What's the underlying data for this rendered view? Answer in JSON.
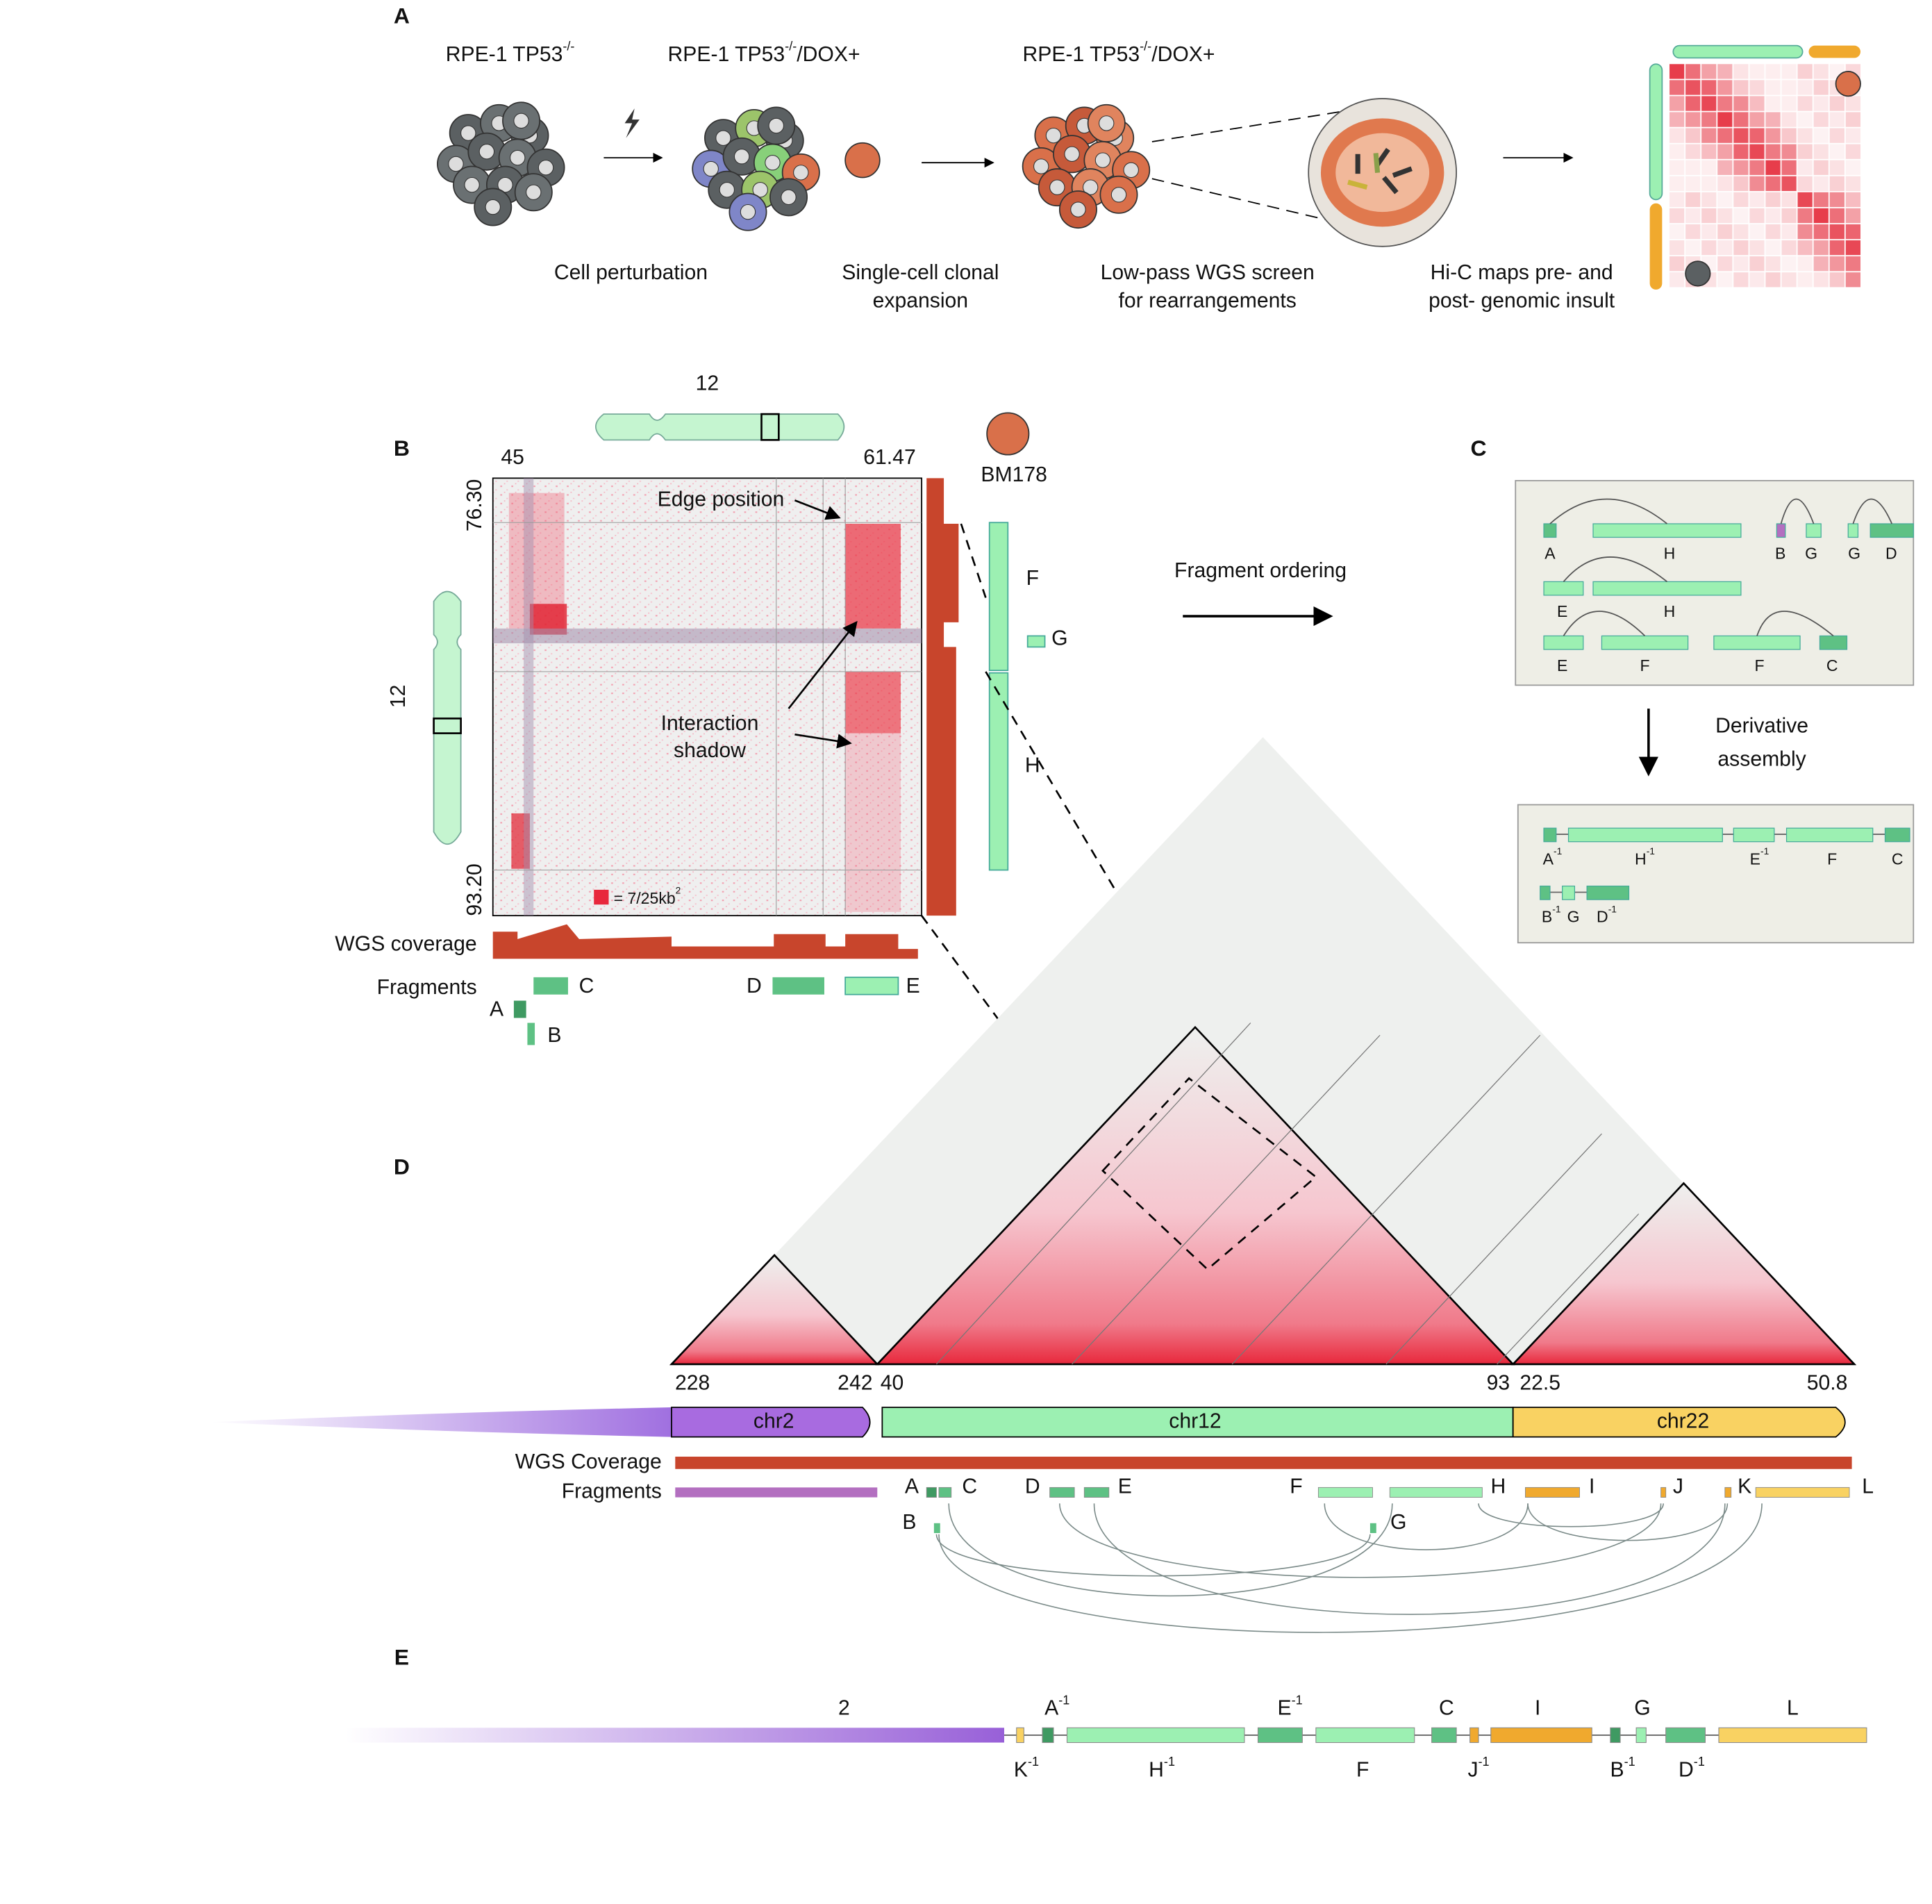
{
  "panel_a": {
    "label": "A",
    "lines": [
      {
        "text": "RPE-1 TP53",
        "sup": "-/-"
      },
      {
        "text": "RPE-1 TP53",
        "sup": "-/-",
        "suffix": "/DOX+"
      },
      {
        "text": "RPE-1 TP53",
        "sup": "-/-",
        "suffix": "/DOX+"
      }
    ],
    "steps": [
      [
        "Cell perturbation"
      ],
      [
        "Single-cell clonal",
        "expansion"
      ],
      [
        "Low-pass WGS screen",
        "for rearrangements"
      ],
      [
        "Hi-C maps pre- and",
        "post- genomic insult"
      ]
    ]
  },
  "panel_b": {
    "label": "B",
    "chromosome": "12",
    "ticks_x": [
      "45",
      "61.47"
    ],
    "ticks_y": [
      "76.30",
      "93.20"
    ],
    "sample": "BM178",
    "edge_label": "Edge position",
    "shadow_label": [
      "Interaction",
      "shadow"
    ],
    "scale": {
      "text": "= 7/25kb",
      "sup": "2"
    },
    "coverage_label": "WGS coverage",
    "fragments_label": "Fragments",
    "fragments": [
      "A",
      "B",
      "C",
      "D",
      "E"
    ],
    "right_fragments": [
      "F",
      "G",
      "H"
    ]
  },
  "panel_c": {
    "label": "C",
    "arrow_label": "Fragment ordering",
    "pairs": [
      [
        "A",
        "H"
      ],
      [
        "B",
        "G"
      ],
      [
        "G",
        "D"
      ],
      [
        "E",
        "H"
      ],
      [
        "E",
        "F"
      ],
      [
        "F",
        "C"
      ]
    ],
    "assembly_label": [
      "Derivative",
      "assembly"
    ],
    "derivatives": [
      [
        {
          "text": "A",
          "sup": "-1"
        },
        {
          "text": "H",
          "sup": "-1"
        },
        {
          "text": "E",
          "sup": "-1"
        },
        {
          "text": "F"
        },
        {
          "text": "C"
        }
      ],
      [
        {
          "text": "B",
          "sup": "-1"
        },
        {
          "text": "G"
        },
        {
          "text": "D",
          "sup": "-1"
        }
      ]
    ]
  },
  "panel_d": {
    "label": "D",
    "ticks": [
      "228",
      "242",
      "40",
      "93",
      "22.5",
      "50.8"
    ],
    "chromosomes": [
      "chr2",
      "chr12",
      "chr22"
    ],
    "coverage_label": "WGS Coverage",
    "fragments_label": "Fragments",
    "fragments": [
      "A",
      "B",
      "C",
      "D",
      "E",
      "F",
      "G",
      "H",
      "I",
      "J",
      "K",
      "L"
    ]
  },
  "panel_e": {
    "label": "E",
    "top": [
      {
        "text": "2"
      },
      {
        "text": "A",
        "sup": "-1"
      },
      {
        "text": "E",
        "sup": "-1"
      },
      {
        "text": "C"
      },
      {
        "text": "I"
      },
      {
        "text": "G"
      },
      {
        "text": "L"
      }
    ],
    "bottom": [
      {
        "text": "K",
        "sup": "-1"
      },
      {
        "text": "H",
        "sup": "-1"
      },
      {
        "text": "F"
      },
      {
        "text": "J",
        "sup": "-1"
      },
      {
        "text": "B",
        "sup": "-1"
      },
      {
        "text": "D",
        "sup": "-1"
      }
    ]
  }
}
